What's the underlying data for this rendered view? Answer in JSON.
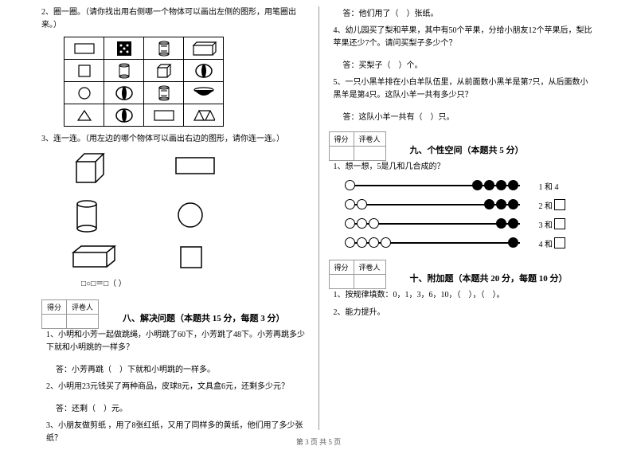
{
  "left": {
    "q2": "2、圈一圈。（请你找出用右侧哪一个物体可以画出左侧的图形，用笔圈出来。）",
    "q3": "3、连一连。（用左边的哪个物体可以画出右边的图形，请你连一连。）",
    "formula": "□○□＝□（  ）",
    "score_col1": "得分",
    "score_col2": "评卷人",
    "section8_title": "八、解决问题（本题共 15 分，每题 3 分）",
    "s8_q1": "1、小明和小芳一起做跳绳，小明跳了60下，小芳跳了48下。小芳再跳多少下就和小明跳的一样多？",
    "s8_a1": "答：小芳再跳（　）下就和小明跳的一样多。",
    "s8_q2": "2、小明用23元钱买了两种商品，皮球8元，文具盒6元，还剩多少元？",
    "s8_a2": "答：还剩（　）元。",
    "s8_q3": "3、小朋友做剪纸 ，用了8张红纸，又用了同样多的黄纸，他们用了多少张纸？"
  },
  "right": {
    "s8_a3": "答：他们用了（　）张纸。",
    "s8_q4": "4、幼儿园买了梨和苹果，其中有50个苹果，分给小朋友12个苹果后，梨比苹果还少7个。请问买梨子多少个？",
    "s8_a4": "答：买梨子（　）个。",
    "s8_q5": "5、一只小黑羊排在小白羊队伍里，从前面数小黑羊是第7只，从后面数小黑羊是第4只。这队小羊一共有多少只？",
    "s8_a5": "答：这队小羊一共有（　）只。",
    "score_col1": "得分",
    "score_col2": "评卷人",
    "section9_title": "九、个性空间（本题共 5 分）",
    "s9_q1": "1、想一想，5是几和几合成的？",
    "abacus_labels": [
      "1 和 4",
      "2 和",
      "3 和",
      "4 和"
    ],
    "abacus_config": [
      {
        "left_open": 1,
        "right_filled": 4
      },
      {
        "left_open": 2,
        "right_filled": 3
      },
      {
        "left_open": 3,
        "right_filled": 2
      },
      {
        "left_open": 4,
        "right_filled": 1
      }
    ],
    "section10_title": "十、附加题（本题共 20 分，每题 10 分）",
    "s10_q1": "1、按规律填数：0，1，3，6，10，（　），（　）。",
    "s10_q2": "2、能力提升。"
  },
  "footer": "第 3 页  共 5 页",
  "colors": {
    "text": "#000000",
    "border": "#000000",
    "bg": "#ffffff",
    "footer": "#555555"
  }
}
